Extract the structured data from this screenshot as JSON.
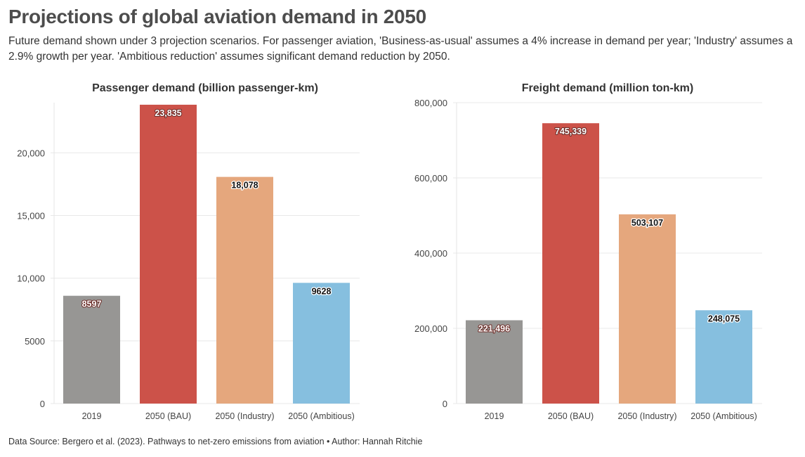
{
  "title": "Projections of global aviation demand in 2050",
  "subtitle": "Future demand shown under 3 projection scenarios. For passenger aviation, 'Business-as-usual' assumes a 4% increase in demand per year; 'Industry' assumes a 2.9% growth per year. 'Ambitious reduction' assumes significant demand reduction by 2050.",
  "footer": "Data Source: Bergero et al. (2023). Pathways to net-zero emissions from aviation • Author: Hannah Ritchie",
  "colors": {
    "2019": "#979694",
    "2050 (BAU)": "#cc5249",
    "2050 (Industry)": "#e5a77d",
    "2050 (Ambitious)": "#86bfdf"
  },
  "chart_data": [
    {
      "type": "bar",
      "title": "Passenger demand (billion passenger-km)",
      "categories": [
        "2019",
        "2050 (BAU)",
        "2050 (Industry)",
        "2050 (Ambitious)"
      ],
      "values": [
        8597,
        23835,
        18078,
        9628
      ],
      "data_labels": [
        "8597",
        "23,835",
        "18,078",
        "9628"
      ],
      "ylim": [
        0,
        24000
      ],
      "yticks": [
        0,
        5000,
        10000,
        15000,
        20000
      ],
      "ytick_labels": [
        "0",
        "5000",
        "10,000",
        "15,000",
        "20,000"
      ],
      "grid": true
    },
    {
      "type": "bar",
      "title": "Freight demand (million ton-km)",
      "categories": [
        "2019",
        "2050 (BAU)",
        "2050 (Industry)",
        "2050 (Ambitious)"
      ],
      "values": [
        221496,
        745339,
        503107,
        248075
      ],
      "data_labels": [
        "221,496",
        "745,339",
        "503,107",
        "248,075"
      ],
      "ylim": [
        0,
        800000
      ],
      "yticks": [
        0,
        200000,
        400000,
        600000,
        800000
      ],
      "ytick_labels": [
        "0",
        "200,000",
        "400,000",
        "600,000",
        "800,000"
      ],
      "grid": true
    }
  ]
}
